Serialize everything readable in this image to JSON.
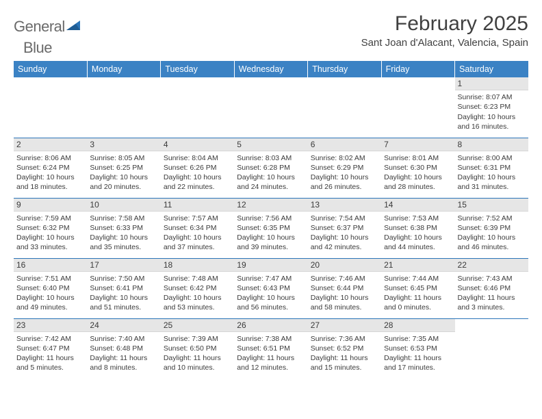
{
  "brand": {
    "word1": "General",
    "word2": "Blue"
  },
  "title": "February 2025",
  "subtitle": "Sant Joan d'Alacant, Valencia, Spain",
  "colors": {
    "header_bg": "#3b82c4",
    "header_text": "#ffffff",
    "rule": "#2a74b8",
    "daybar_bg": "#e6e6e6",
    "text": "#3a3a3a",
    "logo_gray": "#6a6a6a",
    "logo_blue": "#2a74b8",
    "page_bg": "#ffffff"
  },
  "typography": {
    "title_fontsize": 30,
    "subtitle_fontsize": 15,
    "weekday_fontsize": 12.5,
    "daynum_fontsize": 12,
    "body_fontsize": 10.5
  },
  "weekdays": [
    "Sunday",
    "Monday",
    "Tuesday",
    "Wednesday",
    "Thursday",
    "Friday",
    "Saturday"
  ],
  "weeks": [
    [
      {
        "day": "",
        "lines": []
      },
      {
        "day": "",
        "lines": []
      },
      {
        "day": "",
        "lines": []
      },
      {
        "day": "",
        "lines": []
      },
      {
        "day": "",
        "lines": []
      },
      {
        "day": "",
        "lines": []
      },
      {
        "day": "1",
        "lines": [
          "Sunrise: 8:07 AM",
          "Sunset: 6:23 PM",
          "Daylight: 10 hours and 16 minutes."
        ]
      }
    ],
    [
      {
        "day": "2",
        "lines": [
          "Sunrise: 8:06 AM",
          "Sunset: 6:24 PM",
          "Daylight: 10 hours and 18 minutes."
        ]
      },
      {
        "day": "3",
        "lines": [
          "Sunrise: 8:05 AM",
          "Sunset: 6:25 PM",
          "Daylight: 10 hours and 20 minutes."
        ]
      },
      {
        "day": "4",
        "lines": [
          "Sunrise: 8:04 AM",
          "Sunset: 6:26 PM",
          "Daylight: 10 hours and 22 minutes."
        ]
      },
      {
        "day": "5",
        "lines": [
          "Sunrise: 8:03 AM",
          "Sunset: 6:28 PM",
          "Daylight: 10 hours and 24 minutes."
        ]
      },
      {
        "day": "6",
        "lines": [
          "Sunrise: 8:02 AM",
          "Sunset: 6:29 PM",
          "Daylight: 10 hours and 26 minutes."
        ]
      },
      {
        "day": "7",
        "lines": [
          "Sunrise: 8:01 AM",
          "Sunset: 6:30 PM",
          "Daylight: 10 hours and 28 minutes."
        ]
      },
      {
        "day": "8",
        "lines": [
          "Sunrise: 8:00 AM",
          "Sunset: 6:31 PM",
          "Daylight: 10 hours and 31 minutes."
        ]
      }
    ],
    [
      {
        "day": "9",
        "lines": [
          "Sunrise: 7:59 AM",
          "Sunset: 6:32 PM",
          "Daylight: 10 hours and 33 minutes."
        ]
      },
      {
        "day": "10",
        "lines": [
          "Sunrise: 7:58 AM",
          "Sunset: 6:33 PM",
          "Daylight: 10 hours and 35 minutes."
        ]
      },
      {
        "day": "11",
        "lines": [
          "Sunrise: 7:57 AM",
          "Sunset: 6:34 PM",
          "Daylight: 10 hours and 37 minutes."
        ]
      },
      {
        "day": "12",
        "lines": [
          "Sunrise: 7:56 AM",
          "Sunset: 6:35 PM",
          "Daylight: 10 hours and 39 minutes."
        ]
      },
      {
        "day": "13",
        "lines": [
          "Sunrise: 7:54 AM",
          "Sunset: 6:37 PM",
          "Daylight: 10 hours and 42 minutes."
        ]
      },
      {
        "day": "14",
        "lines": [
          "Sunrise: 7:53 AM",
          "Sunset: 6:38 PM",
          "Daylight: 10 hours and 44 minutes."
        ]
      },
      {
        "day": "15",
        "lines": [
          "Sunrise: 7:52 AM",
          "Sunset: 6:39 PM",
          "Daylight: 10 hours and 46 minutes."
        ]
      }
    ],
    [
      {
        "day": "16",
        "lines": [
          "Sunrise: 7:51 AM",
          "Sunset: 6:40 PM",
          "Daylight: 10 hours and 49 minutes."
        ]
      },
      {
        "day": "17",
        "lines": [
          "Sunrise: 7:50 AM",
          "Sunset: 6:41 PM",
          "Daylight: 10 hours and 51 minutes."
        ]
      },
      {
        "day": "18",
        "lines": [
          "Sunrise: 7:48 AM",
          "Sunset: 6:42 PM",
          "Daylight: 10 hours and 53 minutes."
        ]
      },
      {
        "day": "19",
        "lines": [
          "Sunrise: 7:47 AM",
          "Sunset: 6:43 PM",
          "Daylight: 10 hours and 56 minutes."
        ]
      },
      {
        "day": "20",
        "lines": [
          "Sunrise: 7:46 AM",
          "Sunset: 6:44 PM",
          "Daylight: 10 hours and 58 minutes."
        ]
      },
      {
        "day": "21",
        "lines": [
          "Sunrise: 7:44 AM",
          "Sunset: 6:45 PM",
          "Daylight: 11 hours and 0 minutes."
        ]
      },
      {
        "day": "22",
        "lines": [
          "Sunrise: 7:43 AM",
          "Sunset: 6:46 PM",
          "Daylight: 11 hours and 3 minutes."
        ]
      }
    ],
    [
      {
        "day": "23",
        "lines": [
          "Sunrise: 7:42 AM",
          "Sunset: 6:47 PM",
          "Daylight: 11 hours and 5 minutes."
        ]
      },
      {
        "day": "24",
        "lines": [
          "Sunrise: 7:40 AM",
          "Sunset: 6:48 PM",
          "Daylight: 11 hours and 8 minutes."
        ]
      },
      {
        "day": "25",
        "lines": [
          "Sunrise: 7:39 AM",
          "Sunset: 6:50 PM",
          "Daylight: 11 hours and 10 minutes."
        ]
      },
      {
        "day": "26",
        "lines": [
          "Sunrise: 7:38 AM",
          "Sunset: 6:51 PM",
          "Daylight: 11 hours and 12 minutes."
        ]
      },
      {
        "day": "27",
        "lines": [
          "Sunrise: 7:36 AM",
          "Sunset: 6:52 PM",
          "Daylight: 11 hours and 15 minutes."
        ]
      },
      {
        "day": "28",
        "lines": [
          "Sunrise: 7:35 AM",
          "Sunset: 6:53 PM",
          "Daylight: 11 hours and 17 minutes."
        ]
      },
      {
        "day": "",
        "lines": []
      }
    ]
  ]
}
